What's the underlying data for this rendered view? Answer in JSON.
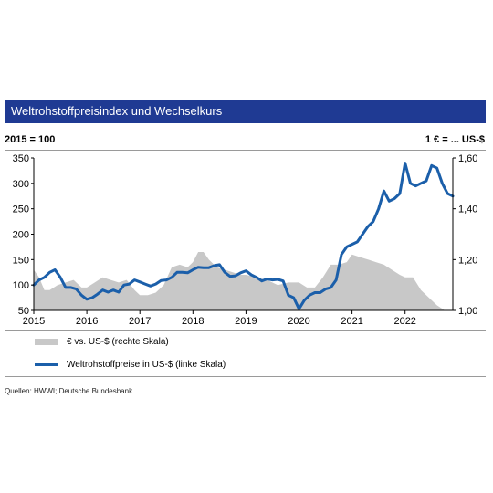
{
  "title": "Weltrohstoffpreisindex und Wechselkurs",
  "unit_left": "2015 = 100",
  "unit_right": "1 € = ... US-$",
  "source": "Quellen: HWWI; Deutsche Bundesbank",
  "colors": {
    "title_bg": "#1f3a93",
    "line": "#1b5faa",
    "area": "#c8c8c8"
  },
  "chart_data": {
    "type": "line",
    "xlabel": "",
    "ylabel": "",
    "x_ticks": [
      "2015",
      "2016",
      "2017",
      "2018",
      "2019",
      "2020",
      "2021",
      "2022"
    ],
    "xlim": [
      2015,
      2022.9
    ],
    "y_left": {
      "lim": [
        50,
        350
      ],
      "ticks": [
        "50",
        "100",
        "150",
        "200",
        "250",
        "300",
        "350"
      ]
    },
    "y_right": {
      "lim": [
        1.0,
        1.6
      ],
      "ticks": [
        "1,00",
        "1,20",
        "1,40",
        "1,60"
      ]
    },
    "grid": false,
    "legend": "bottom",
    "series": [
      {
        "name": "€ vs. US-$ (rechte Skala)",
        "type": "area",
        "axis": "right",
        "x": [
          2015.0,
          2015.1,
          2015.2,
          2015.3,
          2015.45,
          2015.6,
          2015.75,
          2015.9,
          2016.0,
          2016.15,
          2016.3,
          2016.45,
          2016.6,
          2016.75,
          2016.9,
          2017.0,
          2017.15,
          2017.3,
          2017.45,
          2017.6,
          2017.75,
          2017.9,
          2018.0,
          2018.1,
          2018.2,
          2018.3,
          2018.45,
          2018.6,
          2018.75,
          2018.9,
          2019.0,
          2019.2,
          2019.4,
          2019.6,
          2019.8,
          2020.0,
          2020.15,
          2020.3,
          2020.45,
          2020.6,
          2020.75,
          2020.9,
          2021.0,
          2021.15,
          2021.3,
          2021.45,
          2021.6,
          2021.75,
          2021.9,
          2022.0,
          2022.15,
          2022.3,
          2022.45,
          2022.6,
          2022.75,
          2022.9
        ],
        "values": [
          1.16,
          1.13,
          1.08,
          1.08,
          1.1,
          1.11,
          1.12,
          1.09,
          1.09,
          1.11,
          1.13,
          1.12,
          1.11,
          1.12,
          1.08,
          1.06,
          1.06,
          1.07,
          1.1,
          1.17,
          1.18,
          1.17,
          1.19,
          1.23,
          1.23,
          1.2,
          1.17,
          1.16,
          1.15,
          1.14,
          1.14,
          1.13,
          1.12,
          1.1,
          1.11,
          1.11,
          1.09,
          1.09,
          1.13,
          1.18,
          1.18,
          1.19,
          1.22,
          1.21,
          1.2,
          1.19,
          1.18,
          1.16,
          1.14,
          1.13,
          1.13,
          1.08,
          1.05,
          1.02,
          1.0,
          1.0
        ]
      },
      {
        "name": "Weltrohstoffpreise in US-$ (linke Skala)",
        "type": "line",
        "axis": "left",
        "x": [
          2015.0,
          2015.1,
          2015.2,
          2015.3,
          2015.4,
          2015.5,
          2015.6,
          2015.7,
          2015.8,
          2015.9,
          2016.0,
          2016.1,
          2016.2,
          2016.3,
          2016.4,
          2016.5,
          2016.6,
          2016.7,
          2016.8,
          2016.9,
          2017.0,
          2017.1,
          2017.2,
          2017.3,
          2017.4,
          2017.5,
          2017.6,
          2017.7,
          2017.8,
          2017.9,
          2018.0,
          2018.1,
          2018.2,
          2018.3,
          2018.4,
          2018.5,
          2018.6,
          2018.7,
          2018.8,
          2018.9,
          2019.0,
          2019.1,
          2019.2,
          2019.3,
          2019.4,
          2019.5,
          2019.6,
          2019.7,
          2019.8,
          2019.9,
          2020.0,
          2020.1,
          2020.2,
          2020.3,
          2020.4,
          2020.5,
          2020.6,
          2020.7,
          2020.8,
          2020.9,
          2021.0,
          2021.1,
          2021.2,
          2021.3,
          2021.4,
          2021.5,
          2021.6,
          2021.7,
          2021.8,
          2021.9,
          2022.0,
          2022.1,
          2022.2,
          2022.3,
          2022.4,
          2022.5,
          2022.6,
          2022.7,
          2022.8,
          2022.9
        ],
        "values": [
          100,
          110,
          115,
          125,
          130,
          115,
          95,
          95,
          92,
          80,
          72,
          75,
          82,
          90,
          86,
          90,
          86,
          100,
          102,
          110,
          106,
          102,
          98,
          102,
          109,
          110,
          115,
          125,
          125,
          124,
          130,
          135,
          134,
          134,
          138,
          140,
          125,
          117,
          118,
          124,
          128,
          120,
          115,
          108,
          112,
          110,
          111,
          108,
          80,
          75,
          53,
          70,
          80,
          85,
          85,
          92,
          95,
          110,
          160,
          175,
          180,
          185,
          200,
          215,
          225,
          250,
          285,
          265,
          270,
          280,
          340,
          300,
          295,
          300,
          305,
          335,
          330,
          300,
          280,
          275
        ]
      }
    ]
  }
}
